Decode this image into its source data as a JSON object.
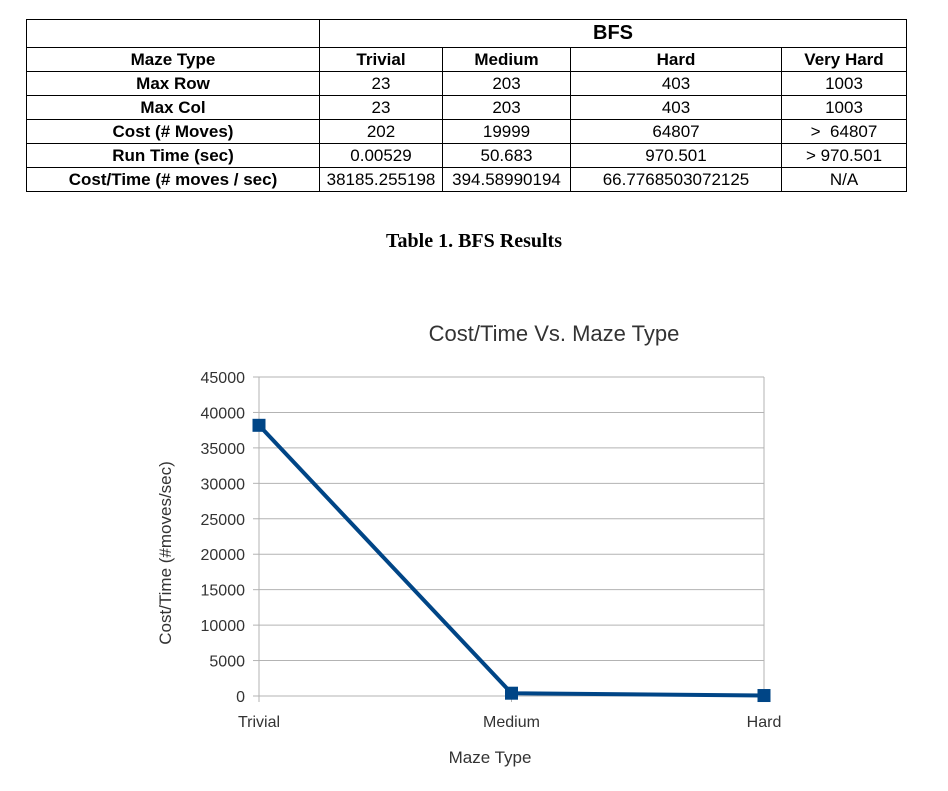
{
  "table": {
    "group_header": "BFS",
    "columns": [
      "Maze Type",
      "Trivial",
      "Medium",
      "Hard",
      "Very Hard"
    ],
    "rows": [
      {
        "label": "Max Row",
        "values": [
          "23",
          "203",
          "403",
          "1003"
        ]
      },
      {
        "label": "Max Col",
        "values": [
          "23",
          "203",
          "403",
          "1003"
        ]
      },
      {
        "label": "Cost (# Moves)",
        "values": [
          "202",
          "19999",
          "64807",
          ">  64807"
        ]
      },
      {
        "label": "Run Time (sec)",
        "values": [
          "0.00529",
          "50.683",
          "970.501",
          "> 970.501"
        ]
      },
      {
        "label": "Cost/Time (# moves / sec)",
        "values": [
          "38185.255198",
          "394.58990194",
          "66.7768503072125",
          "N/A"
        ]
      }
    ]
  },
  "caption": "Table 1. BFS Results",
  "chart_data": {
    "type": "line",
    "title": "Cost/Time Vs. Maze Type",
    "xlabel": "Maze Type",
    "ylabel": "Cost/Time (#moves/sec)",
    "categories": [
      "Trivial",
      "Medium",
      "Hard"
    ],
    "series": [
      {
        "values": [
          38185.255198,
          394.58990194,
          66.7768503072125
        ]
      }
    ],
    "ylim": [
      0,
      45000
    ],
    "yticks": [
      0,
      5000,
      10000,
      15000,
      20000,
      25000,
      30000,
      35000,
      40000,
      45000
    ],
    "grid": true,
    "legend": "none",
    "colors": {
      "series": "#004586",
      "grid": "#b3b3b3",
      "text": "#333333"
    }
  }
}
